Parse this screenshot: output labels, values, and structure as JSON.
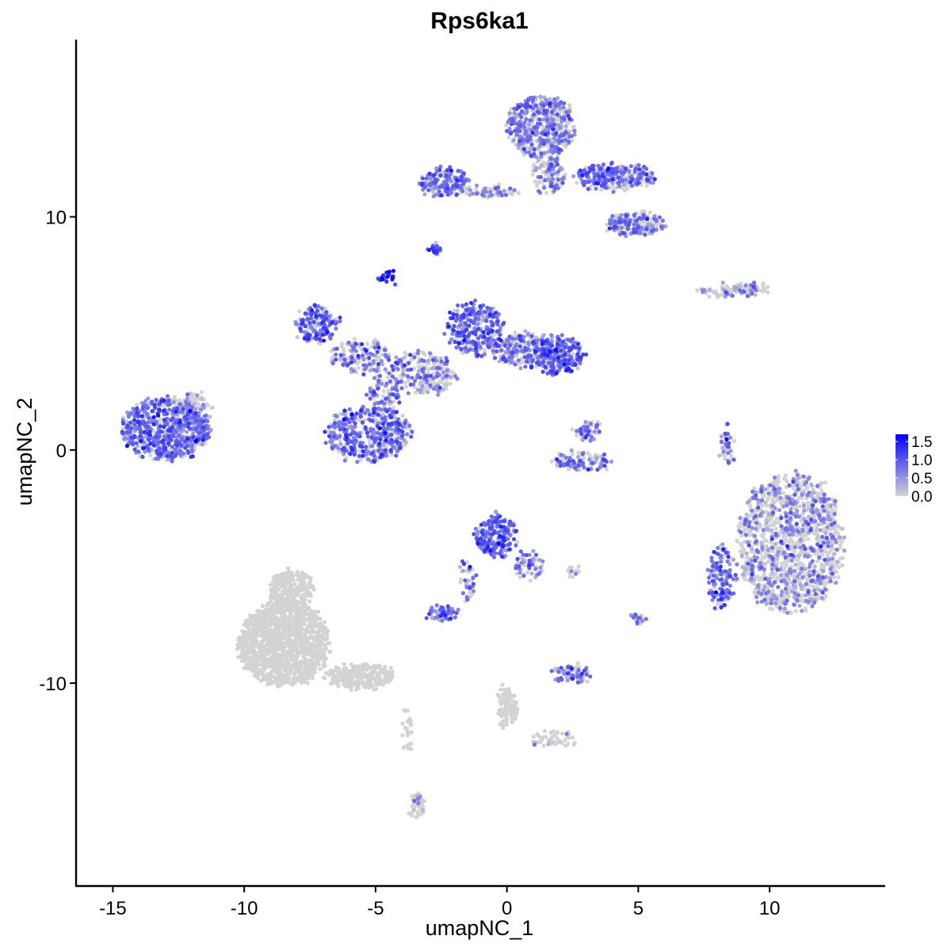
{
  "chart_data": {
    "type": "scatter",
    "title": "Rps6ka1",
    "xlabel": "umapNC_1",
    "ylabel": "umapNC_2",
    "xlim": [
      -16.4,
      14.4
    ],
    "ylim": [
      -18.7,
      17.6
    ],
    "x_ticks": [
      -15,
      -10,
      -5,
      0,
      5,
      10
    ],
    "x_tick_labels": [
      "-15",
      "-10",
      "-5",
      "0",
      "5",
      "10"
    ],
    "y_ticks": [
      -10,
      0,
      10
    ],
    "y_tick_labels": [
      "-10",
      "0",
      "10"
    ],
    "grid": false,
    "legend_placement": "right",
    "color_scale": {
      "low_color": "#d3d3d3",
      "high_color": "#0000ff",
      "min": 0.0,
      "max": 1.7,
      "ticks": [
        0.0,
        0.5,
        1.0,
        1.5
      ],
      "tick_labels": [
        "0.0",
        "0.5",
        "1.0",
        "1.5"
      ]
    },
    "clusters": [
      {
        "cx": -13.0,
        "cy": 0.9,
        "rx": 1.7,
        "ry": 1.3,
        "n": 700,
        "mean_expr": 0.55
      },
      {
        "cx": -11.9,
        "cy": 1.8,
        "rx": 0.7,
        "ry": 0.6,
        "n": 80,
        "mean_expr": 0.3
      },
      {
        "cx": -2.4,
        "cy": 11.5,
        "rx": 0.9,
        "ry": 0.55,
        "n": 180,
        "mean_expr": 0.5
      },
      {
        "cx": -0.7,
        "cy": 11.1,
        "rx": 1.2,
        "ry": 0.2,
        "n": 70,
        "mean_expr": 0.35
      },
      {
        "cx": 1.3,
        "cy": 13.9,
        "rx": 1.3,
        "ry": 1.3,
        "n": 480,
        "mean_expr": 0.45
      },
      {
        "cx": 1.6,
        "cy": 11.8,
        "rx": 0.6,
        "ry": 0.9,
        "n": 120,
        "mean_expr": 0.35
      },
      {
        "cx": 4.1,
        "cy": 11.7,
        "rx": 1.5,
        "ry": 0.55,
        "n": 260,
        "mean_expr": 0.5
      },
      {
        "cx": 4.9,
        "cy": 9.7,
        "rx": 1.1,
        "ry": 0.5,
        "n": 200,
        "mean_expr": 0.45
      },
      {
        "cx": -2.7,
        "cy": 8.6,
        "rx": 0.2,
        "ry": 0.2,
        "n": 20,
        "mean_expr": 0.8
      },
      {
        "cx": -4.5,
        "cy": 7.4,
        "rx": 0.25,
        "ry": 0.25,
        "n": 25,
        "mean_expr": 1.0
      },
      {
        "cx": -7.2,
        "cy": 5.4,
        "rx": 0.8,
        "ry": 0.8,
        "n": 160,
        "mean_expr": 0.6
      },
      {
        "cx": -5.5,
        "cy": 4.0,
        "rx": 1.2,
        "ry": 0.7,
        "n": 150,
        "mean_expr": 0.45
      },
      {
        "cx": -3.2,
        "cy": 3.3,
        "rx": 1.3,
        "ry": 0.9,
        "n": 220,
        "mean_expr": 0.4
      },
      {
        "cx": -1.2,
        "cy": 5.2,
        "rx": 1.0,
        "ry": 1.2,
        "n": 280,
        "mean_expr": 0.6
      },
      {
        "cx": 0.6,
        "cy": 4.3,
        "rx": 1.2,
        "ry": 0.7,
        "n": 200,
        "mean_expr": 0.5
      },
      {
        "cx": 2.0,
        "cy": 4.1,
        "rx": 0.9,
        "ry": 0.8,
        "n": 220,
        "mean_expr": 0.65
      },
      {
        "cx": -5.3,
        "cy": 0.7,
        "rx": 1.6,
        "ry": 1.2,
        "n": 450,
        "mean_expr": 0.55
      },
      {
        "cx": -4.7,
        "cy": 2.4,
        "rx": 0.6,
        "ry": 0.8,
        "n": 90,
        "mean_expr": 0.45
      },
      {
        "cx": 3.1,
        "cy": 0.8,
        "rx": 0.45,
        "ry": 0.45,
        "n": 60,
        "mean_expr": 0.45
      },
      {
        "cx": 2.9,
        "cy": -0.5,
        "rx": 1.1,
        "ry": 0.35,
        "n": 110,
        "mean_expr": 0.45
      },
      {
        "cx": 8.1,
        "cy": 6.8,
        "rx": 0.9,
        "ry": 0.2,
        "n": 60,
        "mean_expr": 0.3
      },
      {
        "cx": 9.3,
        "cy": 6.9,
        "rx": 0.6,
        "ry": 0.25,
        "n": 50,
        "mean_expr": 0.35
      },
      {
        "cx": 8.4,
        "cy": 0.2,
        "rx": 0.2,
        "ry": 0.9,
        "n": 40,
        "mean_expr": 0.5
      },
      {
        "cx": 10.8,
        "cy": -4.0,
        "rx": 2.0,
        "ry": 3.0,
        "n": 1300,
        "mean_expr": 0.3
      },
      {
        "cx": 8.2,
        "cy": -5.4,
        "rx": 0.5,
        "ry": 1.3,
        "n": 140,
        "mean_expr": 0.55
      },
      {
        "cx": -0.4,
        "cy": -3.7,
        "rx": 0.8,
        "ry": 0.9,
        "n": 200,
        "mean_expr": 0.65
      },
      {
        "cx": 0.8,
        "cy": -5.0,
        "rx": 0.5,
        "ry": 0.6,
        "n": 60,
        "mean_expr": 0.45
      },
      {
        "cx": -2.5,
        "cy": -7.0,
        "rx": 0.55,
        "ry": 0.3,
        "n": 70,
        "mean_expr": 0.55
      },
      {
        "cx": -1.5,
        "cy": -5.5,
        "rx": 0.3,
        "ry": 0.9,
        "n": 40,
        "mean_expr": 0.4
      },
      {
        "cx": 2.4,
        "cy": -9.6,
        "rx": 0.7,
        "ry": 0.35,
        "n": 80,
        "mean_expr": 0.5
      },
      {
        "cx": 5.0,
        "cy": -7.3,
        "rx": 0.2,
        "ry": 0.25,
        "n": 20,
        "mean_expr": 0.45
      },
      {
        "cx": 2.6,
        "cy": -5.2,
        "rx": 0.3,
        "ry": 0.1,
        "n": 12,
        "mean_expr": 0.2
      },
      {
        "cx": -8.5,
        "cy": -8.3,
        "rx": 1.7,
        "ry": 1.8,
        "n": 1300,
        "mean_expr": 0.01
      },
      {
        "cx": -8.2,
        "cy": -6.0,
        "rx": 0.8,
        "ry": 0.8,
        "n": 250,
        "mean_expr": 0.01
      },
      {
        "cx": -5.6,
        "cy": -9.7,
        "rx": 1.3,
        "ry": 0.5,
        "n": 260,
        "mean_expr": 0.01
      },
      {
        "cx": 0.0,
        "cy": -11.0,
        "rx": 0.35,
        "ry": 0.9,
        "n": 90,
        "mean_expr": 0.02
      },
      {
        "cx": 1.8,
        "cy": -12.4,
        "rx": 0.9,
        "ry": 0.3,
        "n": 50,
        "mean_expr": 0.1
      },
      {
        "cx": -3.4,
        "cy": -15.3,
        "rx": 0.25,
        "ry": 0.5,
        "n": 50,
        "mean_expr": 0.2
      },
      {
        "cx": -3.8,
        "cy": -12.0,
        "rx": 0.15,
        "ry": 0.9,
        "n": 25,
        "mean_expr": 0.01
      }
    ]
  }
}
